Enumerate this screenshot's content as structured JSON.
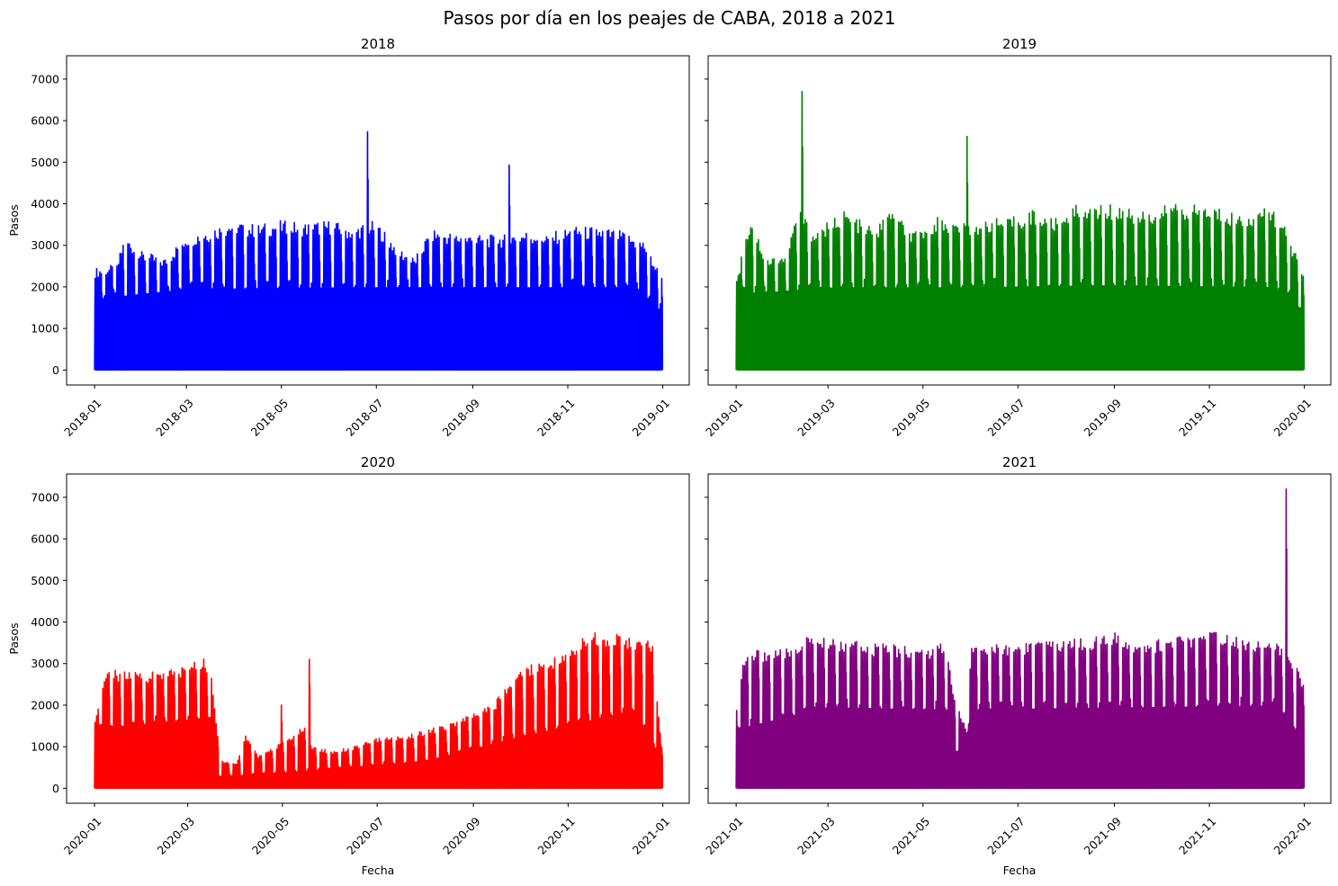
{
  "figure_title": "Pasos por día en los peajes de CABA, 2018 a 2021",
  "chart_data": [
    {
      "type": "line",
      "title": "2018",
      "color": "#0000ff",
      "xlabel": "",
      "ylabel": "Pasos",
      "x_range": [
        "2017-12-14",
        "2019-01-18"
      ],
      "ylim": [
        -360,
        7560
      ],
      "x_tick_labels": [
        "2018-01",
        "2018-03",
        "2018-05",
        "2018-07",
        "2018-09",
        "2018-11",
        "2019-01"
      ],
      "y_tick_labels": [
        "0",
        "1000",
        "2000",
        "3000",
        "4000",
        "5000",
        "6000",
        "7000"
      ],
      "y_tick_labels_visible": true,
      "base_min": 0,
      "envelope": [
        {
          "date": "2018-01-01",
          "pasos": 2450
        },
        {
          "date": "2018-01-15",
          "pasos": 2550
        },
        {
          "date": "2018-01-20",
          "pasos": 3250
        },
        {
          "date": "2018-01-31",
          "pasos": 2850
        },
        {
          "date": "2018-02-15",
          "pasos": 2700
        },
        {
          "date": "2018-02-28",
          "pasos": 3250
        },
        {
          "date": "2018-03-15",
          "pasos": 3400
        },
        {
          "date": "2018-03-31",
          "pasos": 3600
        },
        {
          "date": "2018-04-15",
          "pasos": 3500
        },
        {
          "date": "2018-05-01",
          "pasos": 3600
        },
        {
          "date": "2018-05-15",
          "pasos": 3550
        },
        {
          "date": "2018-06-01",
          "pasos": 3600
        },
        {
          "date": "2018-06-15",
          "pasos": 3450
        },
        {
          "date": "2018-06-30",
          "pasos": 3600
        },
        {
          "date": "2018-07-15",
          "pasos": 2950
        },
        {
          "date": "2018-07-25",
          "pasos": 2700
        },
        {
          "date": "2018-08-05",
          "pasos": 3400
        },
        {
          "date": "2018-08-20",
          "pasos": 3300
        },
        {
          "date": "2018-09-05",
          "pasos": 3250
        },
        {
          "date": "2018-09-20",
          "pasos": 3250
        },
        {
          "date": "2018-10-05",
          "pasos": 3350
        },
        {
          "date": "2018-10-20",
          "pasos": 3300
        },
        {
          "date": "2018-11-05",
          "pasos": 3450
        },
        {
          "date": "2018-11-20",
          "pasos": 3450
        },
        {
          "date": "2018-12-05",
          "pasos": 3350
        },
        {
          "date": "2018-12-20",
          "pasos": 3100
        },
        {
          "date": "2018-12-31",
          "pasos": 2250
        }
      ],
      "weekday_floor": [
        {
          "date": "2018-01-01",
          "pasos": 1800
        },
        {
          "date": "2018-03-01",
          "pasos": 2050
        },
        {
          "date": "2018-06-15",
          "pasos": 2100
        },
        {
          "date": "2018-07-25",
          "pasos": 2100
        },
        {
          "date": "2018-12-15",
          "pasos": 2100
        },
        {
          "date": "2018-12-31",
          "pasos": 1500
        }
      ],
      "spikes": [
        {
          "date": "2018-06-25",
          "pasos": 5730
        },
        {
          "date": "2018-09-24",
          "pasos": 4930
        }
      ]
    },
    {
      "type": "line",
      "title": "2019",
      "color": "#008000",
      "xlabel": "",
      "ylabel": "",
      "x_range": [
        "2018-12-14",
        "2020-01-18"
      ],
      "ylim": [
        -360,
        7560
      ],
      "x_tick_labels": [
        "2019-01",
        "2019-03",
        "2019-05",
        "2019-07",
        "2019-09",
        "2019-11",
        "2020-01"
      ],
      "y_tick_labels": [
        "0",
        "1000",
        "2000",
        "3000",
        "4000",
        "5000",
        "6000",
        "7000"
      ],
      "y_tick_labels_visible": false,
      "base_min": 0,
      "envelope": [
        {
          "date": "2019-01-01",
          "pasos": 2250
        },
        {
          "date": "2019-01-10",
          "pasos": 3700
        },
        {
          "date": "2019-01-20",
          "pasos": 2700
        },
        {
          "date": "2019-02-01",
          "pasos": 2800
        },
        {
          "date": "2019-02-10",
          "pasos": 3900
        },
        {
          "date": "2019-02-20",
          "pasos": 3300
        },
        {
          "date": "2019-03-10",
          "pasos": 3850
        },
        {
          "date": "2019-03-31",
          "pasos": 3400
        },
        {
          "date": "2019-04-10",
          "pasos": 3850
        },
        {
          "date": "2019-04-25",
          "pasos": 3300
        },
        {
          "date": "2019-05-10",
          "pasos": 3700
        },
        {
          "date": "2019-05-25",
          "pasos": 3500
        },
        {
          "date": "2019-06-10",
          "pasos": 3650
        },
        {
          "date": "2019-06-25",
          "pasos": 3650
        },
        {
          "date": "2019-07-10",
          "pasos": 3850
        },
        {
          "date": "2019-07-25",
          "pasos": 3650
        },
        {
          "date": "2019-08-10",
          "pasos": 4050
        },
        {
          "date": "2019-08-25",
          "pasos": 4000
        },
        {
          "date": "2019-09-10",
          "pasos": 3900
        },
        {
          "date": "2019-09-25",
          "pasos": 3850
        },
        {
          "date": "2019-10-10",
          "pasos": 4050
        },
        {
          "date": "2019-10-25",
          "pasos": 3950
        },
        {
          "date": "2019-11-10",
          "pasos": 3900
        },
        {
          "date": "2019-11-25",
          "pasos": 3700
        },
        {
          "date": "2019-12-10",
          "pasos": 3950
        },
        {
          "date": "2019-12-20",
          "pasos": 3400
        },
        {
          "date": "2019-12-31",
          "pasos": 2350
        }
      ],
      "weekday_floor": [
        {
          "date": "2019-01-01",
          "pasos": 1900
        },
        {
          "date": "2019-03-01",
          "pasos": 2100
        },
        {
          "date": "2019-06-01",
          "pasos": 2100
        },
        {
          "date": "2019-09-01",
          "pasos": 2150
        },
        {
          "date": "2019-12-15",
          "pasos": 2100
        },
        {
          "date": "2019-12-31",
          "pasos": 1500
        }
      ],
      "spikes": [
        {
          "date": "2019-02-12",
          "pasos": 6700
        },
        {
          "date": "2019-05-29",
          "pasos": 5620
        }
      ]
    },
    {
      "type": "line",
      "title": "2020",
      "color": "#ff0000",
      "xlabel": "Fecha",
      "ylabel": "Pasos",
      "x_range": [
        "2019-12-14",
        "2021-01-18"
      ],
      "ylim": [
        -360,
        7560
      ],
      "x_tick_labels": [
        "2020-01",
        "2020-03",
        "2020-05",
        "2020-07",
        "2020-09",
        "2020-11",
        "2021-01"
      ],
      "y_tick_labels": [
        "0",
        "1000",
        "2000",
        "3000",
        "4000",
        "5000",
        "6000",
        "7000"
      ],
      "y_tick_labels_visible": true,
      "base_min": 0,
      "envelope": [
        {
          "date": "2020-01-01",
          "pasos": 1750
        },
        {
          "date": "2020-01-05",
          "pasos": 2450
        },
        {
          "date": "2020-01-10",
          "pasos": 2850
        },
        {
          "date": "2020-01-31",
          "pasos": 2800
        },
        {
          "date": "2020-02-15",
          "pasos": 2850
        },
        {
          "date": "2020-02-28",
          "pasos": 2950
        },
        {
          "date": "2020-03-10",
          "pasos": 3150
        },
        {
          "date": "2020-03-15",
          "pasos": 3000
        },
        {
          "date": "2020-03-20",
          "pasos": 1300
        },
        {
          "date": "2020-03-21",
          "pasos": 700
        },
        {
          "date": "2020-04-01",
          "pasos": 600
        },
        {
          "date": "2020-04-07",
          "pasos": 1300
        },
        {
          "date": "2020-04-15",
          "pasos": 800
        },
        {
          "date": "2020-04-25",
          "pasos": 1000
        },
        {
          "date": "2020-05-01",
          "pasos": 1100
        },
        {
          "date": "2020-05-15",
          "pasos": 1500
        },
        {
          "date": "2020-05-20",
          "pasos": 1000
        },
        {
          "date": "2020-06-01",
          "pasos": 900
        },
        {
          "date": "2020-06-15",
          "pasos": 1000
        },
        {
          "date": "2020-07-01",
          "pasos": 1200
        },
        {
          "date": "2020-07-15",
          "pasos": 1250
        },
        {
          "date": "2020-08-01",
          "pasos": 1400
        },
        {
          "date": "2020-08-15",
          "pasos": 1550
        },
        {
          "date": "2020-09-01",
          "pasos": 1800
        },
        {
          "date": "2020-09-15",
          "pasos": 2100
        },
        {
          "date": "2020-10-01",
          "pasos": 2900
        },
        {
          "date": "2020-10-15",
          "pasos": 3100
        },
        {
          "date": "2020-11-01",
          "pasos": 3300
        },
        {
          "date": "2020-11-15",
          "pasos": 3800
        },
        {
          "date": "2020-12-01",
          "pasos": 3750
        },
        {
          "date": "2020-12-15",
          "pasos": 3600
        },
        {
          "date": "2020-12-25",
          "pasos": 3550
        },
        {
          "date": "2020-12-31",
          "pasos": 1000
        }
      ],
      "weekday_floor": [
        {
          "date": "2020-01-01",
          "pasos": 1500
        },
        {
          "date": "2020-03-15",
          "pasos": 1800
        },
        {
          "date": "2020-03-21",
          "pasos": 300
        },
        {
          "date": "2020-05-01",
          "pasos": 400
        },
        {
          "date": "2020-08-01",
          "pasos": 700
        },
        {
          "date": "2020-10-01",
          "pasos": 1300
        },
        {
          "date": "2020-12-15",
          "pasos": 2000
        },
        {
          "date": "2020-12-31",
          "pasos": 600
        }
      ],
      "spikes": [
        {
          "date": "2020-04-30",
          "pasos": 2000
        },
        {
          "date": "2020-05-18",
          "pasos": 3100
        }
      ]
    },
    {
      "type": "line",
      "title": "2021",
      "color": "#800080",
      "xlabel": "Fecha",
      "ylabel": "",
      "x_range": [
        "2020-12-14",
        "2022-01-18"
      ],
      "ylim": [
        -360,
        7560
      ],
      "x_tick_labels": [
        "2021-01",
        "2021-03",
        "2021-05",
        "2021-07",
        "2021-09",
        "2021-11",
        "2022-01"
      ],
      "y_tick_labels": [
        "0",
        "1000",
        "2000",
        "3000",
        "4000",
        "5000",
        "6000",
        "7000"
      ],
      "y_tick_labels_visible": false,
      "base_min": 0,
      "envelope": [
        {
          "date": "2021-01-01",
          "pasos": 1900
        },
        {
          "date": "2021-01-05",
          "pasos": 3150
        },
        {
          "date": "2021-01-15",
          "pasos": 3350
        },
        {
          "date": "2021-02-01",
          "pasos": 3350
        },
        {
          "date": "2021-02-15",
          "pasos": 3650
        },
        {
          "date": "2021-03-01",
          "pasos": 3600
        },
        {
          "date": "2021-03-15",
          "pasos": 3550
        },
        {
          "date": "2021-04-01",
          "pasos": 3500
        },
        {
          "date": "2021-04-15",
          "pasos": 3450
        },
        {
          "date": "2021-05-01",
          "pasos": 3400
        },
        {
          "date": "2021-05-15",
          "pasos": 3500
        },
        {
          "date": "2021-05-22",
          "pasos": 2100
        },
        {
          "date": "2021-05-28",
          "pasos": 1500
        },
        {
          "date": "2021-06-01",
          "pasos": 3450
        },
        {
          "date": "2021-06-15",
          "pasos": 3500
        },
        {
          "date": "2021-07-01",
          "pasos": 3550
        },
        {
          "date": "2021-07-15",
          "pasos": 3550
        },
        {
          "date": "2021-08-01",
          "pasos": 3650
        },
        {
          "date": "2021-08-15",
          "pasos": 3650
        },
        {
          "date": "2021-09-01",
          "pasos": 3750
        },
        {
          "date": "2021-09-15",
          "pasos": 3600
        },
        {
          "date": "2021-10-01",
          "pasos": 3600
        },
        {
          "date": "2021-10-15",
          "pasos": 3700
        },
        {
          "date": "2021-11-01",
          "pasos": 3800
        },
        {
          "date": "2021-11-15",
          "pasos": 3750
        },
        {
          "date": "2021-12-01",
          "pasos": 3600
        },
        {
          "date": "2021-12-15",
          "pasos": 3500
        },
        {
          "date": "2021-12-25",
          "pasos": 3100
        },
        {
          "date": "2021-12-31",
          "pasos": 2550
        }
      ],
      "weekday_floor": [
        {
          "date": "2021-01-01",
          "pasos": 1500
        },
        {
          "date": "2021-03-01",
          "pasos": 2050
        },
        {
          "date": "2021-05-15",
          "pasos": 2000
        },
        {
          "date": "2021-05-25",
          "pasos": 450
        },
        {
          "date": "2021-06-01",
          "pasos": 2000
        },
        {
          "date": "2021-12-15",
          "pasos": 2100
        },
        {
          "date": "2021-12-31",
          "pasos": 1200
        }
      ],
      "spikes": [
        {
          "date": "2021-12-20",
          "pasos": 7200
        }
      ]
    }
  ]
}
